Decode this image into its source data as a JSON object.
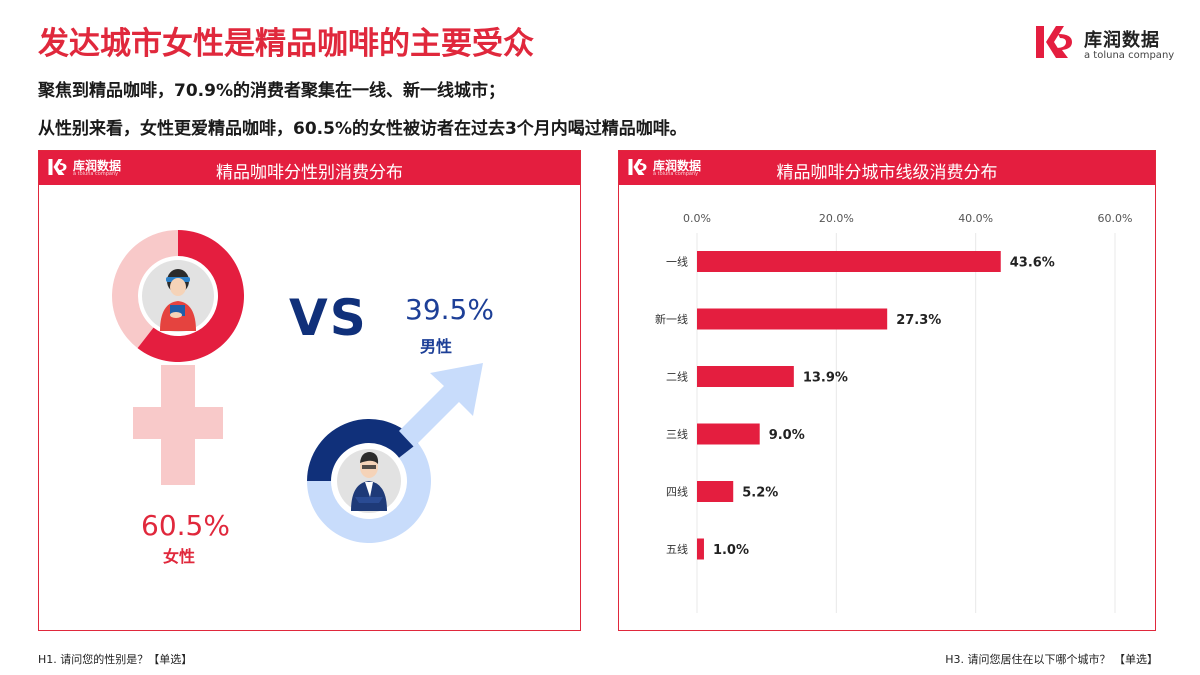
{
  "header": {
    "title": "发达城市女性是精品咖啡的主要受众",
    "line1": "聚焦到精品咖啡，70.9%的消费者聚集在一线、新一线城市；",
    "line2": "从性别来看，女性更爱精品咖啡，60.5%的女性被访者在过去3个月内喝过精品咖啡。"
  },
  "logo": {
    "name": "库润数据",
    "sub": "a toluna company"
  },
  "colors": {
    "brand_red": "#e41e3f",
    "female_light": "#f8c9c9",
    "male_navy": "#10307a",
    "male_light": "#c8dcfb"
  },
  "gender_panel": {
    "title": "精品咖啡分性别消费分布",
    "vs": "VS",
    "female_value": "60.5%",
    "female_label": "女性",
    "male_value": "39.5%",
    "male_label": "男性"
  },
  "city_panel": {
    "title": "精品咖啡分城市线级消费分布"
  },
  "chart_data": [
    {
      "type": "pie",
      "categories": [
        "女性",
        "男性"
      ],
      "values": [
        60.5,
        39.5
      ]
    },
    {
      "type": "bar",
      "orientation": "horizontal",
      "categories": [
        "一线",
        "新一线",
        "二线",
        "三线",
        "四线",
        "五线"
      ],
      "values": [
        43.6,
        27.3,
        13.9,
        9.0,
        5.2,
        1.0
      ],
      "value_labels": [
        "43.6%",
        "27.3%",
        "13.9%",
        "9.0%",
        "5.2%",
        "1.0%"
      ],
      "xlim": [
        0,
        60
      ],
      "x_ticks": [
        "0.0%",
        "20.0%",
        "40.0%",
        "60.0%"
      ],
      "x_tick_values": [
        0,
        20,
        40,
        60
      ],
      "tick_position": "top",
      "grid": true
    }
  ],
  "footnotes": {
    "left": "H1. 请问您的性别是？【单选】",
    "right": "H3. 请问您居住在以下哪个城市？ 【单选】"
  }
}
